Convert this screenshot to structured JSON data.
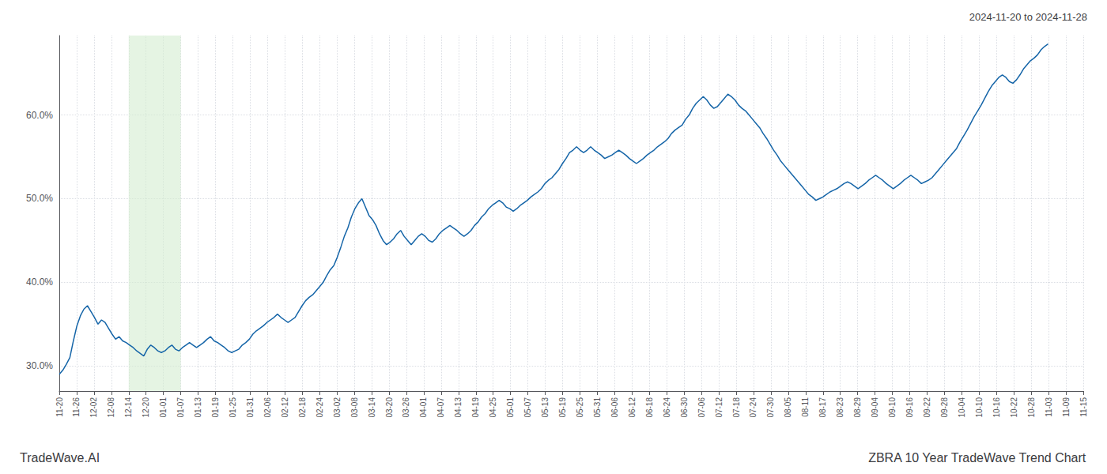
{
  "chart_data": {
    "type": "line",
    "title": "ZBRA 10 Year TradeWave Trend Chart",
    "subtitle": "2024-11-20 to 2024-11-28",
    "annotations": [
      "TradeWave.AI"
    ],
    "color": "#1565a8",
    "grid": true,
    "highlight": {
      "from": "12-14",
      "to": "01-07",
      "color": "#d4ecd0"
    },
    "xlim": [
      0,
      291
    ],
    "xticks": [
      {
        "value": 0,
        "label": "11-20"
      },
      {
        "value": 4.932203,
        "label": "11-26"
      },
      {
        "value": 9.864407,
        "label": "12-02"
      },
      {
        "value": 14.79661,
        "label": "12-08"
      },
      {
        "value": 19.728814,
        "label": "12-14"
      },
      {
        "value": 24.661017,
        "label": "12-20"
      },
      {
        "value": 29.59322,
        "label": "01-01"
      },
      {
        "value": 34.525424,
        "label": "01-07"
      },
      {
        "value": 39.457627,
        "label": "01-13"
      },
      {
        "value": 44.389831,
        "label": "01-19"
      },
      {
        "value": 49.322034,
        "label": "01-25"
      },
      {
        "value": 54.254237,
        "label": "01-31"
      },
      {
        "value": 59.186441,
        "label": "02-06"
      },
      {
        "value": 64.118644,
        "label": "02-12"
      },
      {
        "value": 69.050847,
        "label": "02-18"
      },
      {
        "value": 73.983051,
        "label": "02-24"
      },
      {
        "value": 78.915254,
        "label": "03-02"
      },
      {
        "value": 83.847458,
        "label": "03-08"
      },
      {
        "value": 88.779661,
        "label": "03-14"
      },
      {
        "value": 93.711864,
        "label": "03-20"
      },
      {
        "value": 98.644068,
        "label": "03-26"
      },
      {
        "value": 103.576271,
        "label": "04-01"
      },
      {
        "value": 108.508475,
        "label": "04-07"
      },
      {
        "value": 113.440678,
        "label": "04-13"
      },
      {
        "value": 118.372881,
        "label": "04-19"
      },
      {
        "value": 123.305085,
        "label": "04-25"
      },
      {
        "value": 128.237288,
        "label": "05-01"
      },
      {
        "value": 133.169492,
        "label": "05-07"
      },
      {
        "value": 138.101695,
        "label": "05-13"
      },
      {
        "value": 143.033898,
        "label": "05-19"
      },
      {
        "value": 147.966102,
        "label": "05-25"
      },
      {
        "value": 152.898305,
        "label": "05-31"
      },
      {
        "value": 157.830508,
        "label": "06-06"
      },
      {
        "value": 162.762712,
        "label": "06-12"
      },
      {
        "value": 167.694915,
        "label": "06-18"
      },
      {
        "value": 172.627119,
        "label": "06-24"
      },
      {
        "value": 177.559322,
        "label": "06-30"
      },
      {
        "value": 182.491525,
        "label": "07-06"
      },
      {
        "value": 187.423729,
        "label": "07-12"
      },
      {
        "value": 192.355932,
        "label": "07-18"
      },
      {
        "value": 197.288136,
        "label": "07-24"
      },
      {
        "value": 202.220339,
        "label": "07-30"
      },
      {
        "value": 207.152542,
        "label": "08-05"
      },
      {
        "value": 212.084746,
        "label": "08-11"
      },
      {
        "value": 217.016949,
        "label": "08-17"
      },
      {
        "value": 221.949153,
        "label": "08-23"
      },
      {
        "value": 226.881356,
        "label": "08-29"
      },
      {
        "value": 231.813559,
        "label": "09-04"
      },
      {
        "value": 236.745763,
        "label": "09-10"
      },
      {
        "value": 241.677966,
        "label": "09-16"
      },
      {
        "value": 246.610169,
        "label": "09-22"
      },
      {
        "value": 251.542373,
        "label": "09-28"
      },
      {
        "value": 256.474576,
        "label": "10-04"
      },
      {
        "value": 261.40678,
        "label": "10-10"
      },
      {
        "value": 266.338983,
        "label": "10-16"
      },
      {
        "value": 271.271186,
        "label": "10-22"
      },
      {
        "value": 276.20339,
        "label": "10-28"
      },
      {
        "value": 281.135593,
        "label": "11-03"
      },
      {
        "value": 286.067797,
        "label": "11-09"
      },
      {
        "value": 291,
        "label": "11-15"
      }
    ],
    "ylim": [
      0.27,
      0.695
    ],
    "yticks": [
      {
        "value": 0.3,
        "label": "30.0%"
      },
      {
        "value": 0.4,
        "label": "40.0%"
      },
      {
        "value": 0.5,
        "label": "50.0%"
      },
      {
        "value": 0.6,
        "label": "60.0%"
      }
    ],
    "values": [
      0.29,
      0.295,
      0.302,
      0.31,
      0.33,
      0.348,
      0.36,
      0.368,
      0.372,
      0.365,
      0.358,
      0.35,
      0.355,
      0.352,
      0.345,
      0.338,
      0.332,
      0.335,
      0.33,
      0.328,
      0.325,
      0.322,
      0.318,
      0.315,
      0.312,
      0.32,
      0.325,
      0.322,
      0.318,
      0.316,
      0.318,
      0.322,
      0.325,
      0.32,
      0.318,
      0.322,
      0.325,
      0.328,
      0.325,
      0.322,
      0.325,
      0.328,
      0.332,
      0.335,
      0.33,
      0.328,
      0.325,
      0.322,
      0.318,
      0.316,
      0.318,
      0.32,
      0.325,
      0.328,
      0.332,
      0.338,
      0.342,
      0.345,
      0.348,
      0.352,
      0.355,
      0.358,
      0.362,
      0.358,
      0.355,
      0.352,
      0.355,
      0.358,
      0.365,
      0.372,
      0.378,
      0.382,
      0.385,
      0.39,
      0.395,
      0.4,
      0.408,
      0.415,
      0.42,
      0.43,
      0.442,
      0.455,
      0.465,
      0.478,
      0.488,
      0.495,
      0.5,
      0.49,
      0.48,
      0.475,
      0.468,
      0.458,
      0.45,
      0.445,
      0.448,
      0.452,
      0.458,
      0.462,
      0.455,
      0.45,
      0.445,
      0.45,
      0.455,
      0.458,
      0.455,
      0.45,
      0.448,
      0.452,
      0.458,
      0.462,
      0.465,
      0.468,
      0.465,
      0.462,
      0.458,
      0.455,
      0.458,
      0.462,
      0.468,
      0.472,
      0.478,
      0.482,
      0.488,
      0.492,
      0.495,
      0.498,
      0.495,
      0.49,
      0.488,
      0.485,
      0.488,
      0.492,
      0.495,
      0.498,
      0.502,
      0.505,
      0.508,
      0.512,
      0.518,
      0.522,
      0.525,
      0.53,
      0.535,
      0.542,
      0.548,
      0.555,
      0.558,
      0.562,
      0.558,
      0.555,
      0.558,
      0.562,
      0.558,
      0.555,
      0.552,
      0.548,
      0.55,
      0.552,
      0.555,
      0.558,
      0.555,
      0.552,
      0.548,
      0.545,
      0.542,
      0.545,
      0.548,
      0.552,
      0.555,
      0.558,
      0.562,
      0.565,
      0.568,
      0.572,
      0.578,
      0.582,
      0.585,
      0.588,
      0.595,
      0.6,
      0.608,
      0.614,
      0.618,
      0.622,
      0.618,
      0.612,
      0.608,
      0.61,
      0.615,
      0.62,
      0.625,
      0.622,
      0.618,
      0.612,
      0.608,
      0.605,
      0.6,
      0.595,
      0.59,
      0.585,
      0.578,
      0.572,
      0.565,
      0.558,
      0.552,
      0.545,
      0.54,
      0.535,
      0.53,
      0.525,
      0.52,
      0.515,
      0.51,
      0.505,
      0.502,
      0.498,
      0.5,
      0.502,
      0.505,
      0.508,
      0.51,
      0.512,
      0.515,
      0.518,
      0.52,
      0.518,
      0.515,
      0.512,
      0.515,
      0.518,
      0.522,
      0.525,
      0.528,
      0.525,
      0.522,
      0.518,
      0.515,
      0.512,
      0.515,
      0.518,
      0.522,
      0.525,
      0.528,
      0.525,
      0.522,
      0.518,
      0.52,
      0.522,
      0.525,
      0.53,
      0.535,
      0.54,
      0.545,
      0.55,
      0.555,
      0.56,
      0.568,
      0.575,
      0.582,
      0.59,
      0.598,
      0.605,
      0.612,
      0.62,
      0.628,
      0.635,
      0.64,
      0.645,
      0.648,
      0.645,
      0.64,
      0.638,
      0.642,
      0.648,
      0.655,
      0.66,
      0.665,
      0.668,
      0.672,
      0.678,
      0.682,
      0.685
    ]
  }
}
